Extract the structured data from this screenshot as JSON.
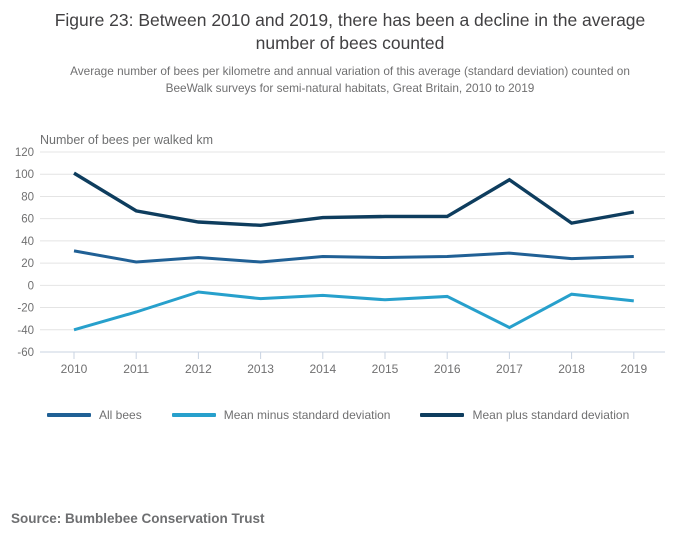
{
  "chart_data": {
    "type": "line",
    "title": "Figure 23: Between 2010 and 2019, there has been a decline in the average number of bees counted",
    "subtitle": "Average number of bees per kilometre and annual variation of this average (standard deviation) counted on BeeWalk surveys for semi-natural habitats, Great Britain, 2010 to 2019",
    "ylabel": "Number of bees per walked km",
    "xlabel": "",
    "categories": [
      "2010",
      "2011",
      "2012",
      "2013",
      "2014",
      "2015",
      "2016",
      "2017",
      "2018",
      "2019"
    ],
    "series": [
      {
        "name": "All bees",
        "color": "#206095",
        "values": [
          31,
          21,
          25,
          21,
          26,
          25,
          26,
          29,
          24,
          26
        ]
      },
      {
        "name": "Mean minus standard deviation",
        "color": "#27a0cc",
        "values": [
          -40,
          -24,
          -6,
          -12,
          -9,
          -13,
          -10,
          -38,
          -8,
          -14
        ]
      },
      {
        "name": "Mean plus standard deviation",
        "color": "#0e3d5e",
        "values": [
          101,
          67,
          57,
          54,
          61,
          62,
          62,
          95,
          56,
          66
        ]
      }
    ],
    "ylim": [
      -60,
      120
    ],
    "ytick_step": 20,
    "grid": "horizontal",
    "legend_position": "bottom",
    "colors": {
      "gridline": "#e4e4e4",
      "axis_line": "#c9d3e2",
      "tick_text": "#707071"
    }
  },
  "footer": {
    "source": "Source: Bumblebee Conservation Trust"
  }
}
